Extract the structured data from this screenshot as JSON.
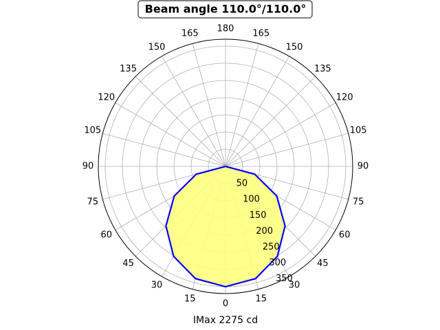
{
  "chart_data": {
    "type": "polar",
    "title": "Beam angle 110.0°/110.0°",
    "x_label": "IMax 2275 cd",
    "x": [
      -90,
      -75,
      -60,
      -45,
      -30,
      -15,
      0,
      15,
      30,
      45,
      60,
      75,
      90
    ],
    "series": [
      {
        "color": "#0000ff",
        "fill": "#ffff80",
        "values": [
          0,
          88,
          172,
          245,
          302,
          338,
          350,
          338,
          302,
          245,
          172,
          88,
          0
        ]
      }
    ],
    "rlim": [
      0,
      370
    ],
    "rticks": [
      50,
      100,
      150,
      200,
      250,
      300,
      350
    ],
    "thetaticks": [
      0,
      15,
      30,
      45,
      60,
      75,
      90,
      105,
      120,
      135,
      150,
      165,
      180,
      {
        "value": 195,
        "label": "165"
      },
      {
        "value": 210,
        "label": "150"
      },
      {
        "value": 225,
        "label": "135"
      },
      {
        "value": 240,
        "label": "120"
      },
      {
        "value": 255,
        "label": "105"
      },
      {
        "value": 270,
        "label": "90"
      },
      {
        "value": 285,
        "label": "75"
      },
      {
        "value": 300,
        "label": "60"
      },
      {
        "value": 315,
        "label": "45"
      },
      {
        "value": 330,
        "label": "30"
      },
      {
        "value": 345,
        "label": "15"
      }
    ],
    "grid": true
  }
}
